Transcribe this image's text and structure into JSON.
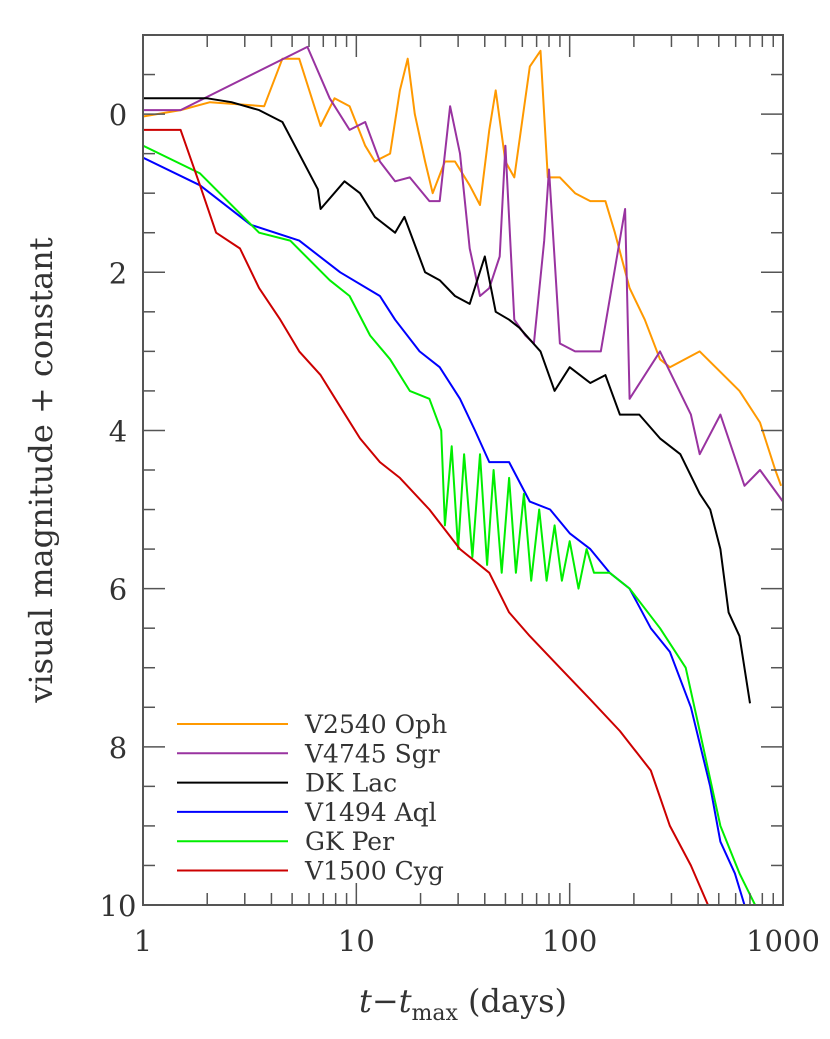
{
  "chart_data": {
    "type": "line",
    "title": "",
    "xlabel": "t−t",
    "xlabel_sub": "max",
    "xlabel_unit": "(days)",
    "ylabel": "visual magnitude + constant",
    "xscale": "log",
    "xlim": [
      1,
      1000
    ],
    "ylim": [
      -1,
      10
    ],
    "y_inverted": true,
    "grid": false,
    "legend_position": "bottom-left",
    "x_ticks": [
      "1",
      "10",
      "100",
      "1000"
    ],
    "x_tick_values": [
      1,
      10,
      100,
      1000
    ],
    "y_ticks": [
      "0",
      "2",
      "4",
      "6",
      "8",
      "10"
    ],
    "y_tick_values": [
      0,
      2,
      4,
      6,
      8,
      10
    ],
    "series": [
      {
        "name": "V2540 Oph",
        "color": "#ff9900",
        "x": [
          1,
          1.5,
          2.06,
          3.7,
          4.5,
          5.4,
          6.8,
          7.9,
          9.3,
          11,
          12.2,
          14.4,
          16,
          17.4,
          18.8,
          21,
          22.8,
          26,
          29,
          34,
          38,
          42,
          45,
          50,
          55,
          65,
          73,
          79,
          90,
          106,
          125,
          147,
          163,
          191,
          225,
          265,
          295,
          407,
          625,
          780,
          920,
          980
        ],
        "y": [
          0.03,
          -0.05,
          -0.15,
          -0.1,
          -0.7,
          -0.7,
          0.15,
          -0.2,
          -0.1,
          0.4,
          0.6,
          0.5,
          -0.3,
          -0.7,
          0.0,
          0.6,
          1.0,
          0.6,
          0.6,
          0.9,
          1.15,
          0.2,
          -0.3,
          0.6,
          0.8,
          -0.6,
          -0.8,
          0.8,
          0.8,
          1.0,
          1.1,
          1.1,
          1.5,
          2.2,
          2.6,
          3.1,
          3.2,
          3.0,
          3.5,
          3.9,
          4.5,
          4.7
        ]
      },
      {
        "name": "V4745 Sgr",
        "color": "#9933a0",
        "x": [
          1,
          1.5,
          5.9,
          7.5,
          9.3,
          11,
          12.9,
          15.2,
          17.8,
          22,
          24.6,
          27.5,
          30.6,
          34,
          38,
          42,
          47,
          50,
          55,
          62,
          68,
          76,
          80,
          90,
          106,
          140,
          182,
          191,
          265,
          370,
          407,
          509,
          660,
          780,
          1000
        ],
        "y": [
          -0.05,
          -0.05,
          -0.85,
          -0.2,
          0.2,
          0.1,
          0.6,
          0.85,
          0.8,
          1.1,
          1.1,
          -0.1,
          0.5,
          1.7,
          2.3,
          2.2,
          1.8,
          0.4,
          2.6,
          2.8,
          2.9,
          1.6,
          0.7,
          2.9,
          3.0,
          3.0,
          1.2,
          3.6,
          3.0,
          3.8,
          4.3,
          3.8,
          4.7,
          4.5,
          4.9
        ]
      },
      {
        "name": "DK Lac",
        "color": "#000000",
        "x": [
          1,
          1.5,
          2,
          2.6,
          3.5,
          4.5,
          6.6,
          6.8,
          8.8,
          10.4,
          12.2,
          15.2,
          16.8,
          21,
          24.6,
          29,
          34,
          40,
          45,
          52,
          58,
          73,
          85,
          100,
          125,
          147,
          172,
          212,
          265,
          330,
          407,
          456,
          509,
          556,
          625,
          700
        ],
        "y": [
          -0.2,
          -0.2,
          -0.2,
          -0.15,
          -0.05,
          0.1,
          0.95,
          1.2,
          0.85,
          1.0,
          1.3,
          1.5,
          1.3,
          2.0,
          2.1,
          2.3,
          2.4,
          1.8,
          2.5,
          2.6,
          2.7,
          3.0,
          3.5,
          3.2,
          3.4,
          3.3,
          3.8,
          3.8,
          4.1,
          4.3,
          4.8,
          5.0,
          5.5,
          6.3,
          6.6,
          7.45
        ]
      },
      {
        "name": "V1494 Aql",
        "color": "#0000ff",
        "x": [
          1,
          1.85,
          3.2,
          5.4,
          8.4,
          12.9,
          15.2,
          19.8,
          24.6,
          30.6,
          36,
          42,
          52,
          65,
          81,
          100,
          125,
          154,
          191,
          240,
          295,
          370,
          456,
          509,
          595,
          660
        ],
        "y": [
          0.55,
          0.9,
          1.4,
          1.6,
          2.0,
          2.3,
          2.6,
          3.0,
          3.2,
          3.6,
          4.0,
          4.4,
          4.4,
          4.9,
          5.0,
          5.3,
          5.5,
          5.8,
          6.0,
          6.5,
          6.8,
          7.5,
          8.5,
          9.2,
          9.6,
          10.0
        ]
      },
      {
        "name": "GK Per",
        "color": "#00ee00",
        "x": [
          1,
          1.85,
          3.5,
          4.9,
          7.5,
          9.3,
          11.6,
          14.4,
          17.8,
          22,
          25,
          26,
          28,
          30,
          32,
          35,
          38,
          41,
          44,
          48,
          52,
          56,
          61,
          66,
          72,
          78,
          85,
          92,
          100,
          110,
          120,
          130,
          154,
          191,
          265,
          350,
          407,
          509,
          625,
          740
        ],
        "y": [
          0.4,
          0.75,
          1.5,
          1.6,
          2.1,
          2.3,
          2.8,
          3.1,
          3.5,
          3.6,
          4.0,
          5.2,
          4.2,
          5.5,
          4.3,
          5.6,
          4.3,
          5.7,
          4.5,
          5.8,
          4.6,
          5.8,
          4.8,
          5.9,
          5.0,
          5.9,
          5.2,
          5.9,
          5.4,
          6.0,
          5.5,
          5.8,
          5.8,
          6.0,
          6.5,
          7.0,
          7.8,
          9.0,
          9.6,
          10.0
        ]
      },
      {
        "name": "V1500 Cyg",
        "color": "#cc0000",
        "x": [
          1,
          1.5,
          1.85,
          2.2,
          2.85,
          3.5,
          4.4,
          5.4,
          6.8,
          8.4,
          10.4,
          12.9,
          16,
          22,
          30.6,
          42,
          52,
          65,
          90,
          125,
          172,
          240,
          295,
          370,
          445
        ],
        "y": [
          0.2,
          0.2,
          0.9,
          1.5,
          1.7,
          2.2,
          2.6,
          3.0,
          3.3,
          3.7,
          4.1,
          4.4,
          4.6,
          5.0,
          5.5,
          5.8,
          6.3,
          6.6,
          7.0,
          7.4,
          7.8,
          8.3,
          9.0,
          9.5,
          10.0
        ]
      }
    ]
  }
}
